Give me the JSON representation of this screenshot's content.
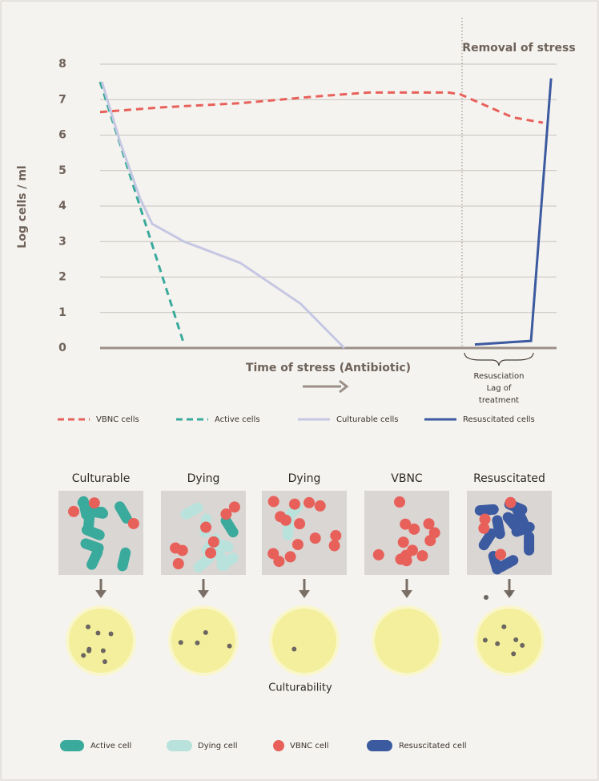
{
  "chart_data": {
    "type": "line",
    "ylabel": "Log cells / ml",
    "xlabel": "Time of stress (Antibiotic)",
    "annotations": [
      "Removal of stress",
      "Resusciation",
      "Lag of",
      "treatment"
    ],
    "xlim": [
      0,
      100
    ],
    "ylim": [
      0,
      8
    ],
    "yticks": [
      0,
      1,
      2,
      3,
      4,
      5,
      6,
      7,
      8
    ],
    "grid": true,
    "series": [
      {
        "name": "VBNC cells",
        "color": "#e8605a",
        "dashed": true,
        "x": [
          0,
          13.2,
          30.7,
          48.2,
          58.8,
          76.3,
          78.9,
          83.3,
          90.4,
          97
        ],
        "values": [
          6.65,
          6.78,
          6.9,
          7.1,
          7.2,
          7.2,
          7.15,
          6.9,
          6.5,
          6.35
        ]
      },
      {
        "name": "Active cells",
        "color": "#3aaa9c",
        "dashed": true,
        "x": [
          0,
          18.4
        ],
        "values": [
          7.5,
          0.1
        ]
      },
      {
        "name": "Culturable cells",
        "color": "#c5c7e3",
        "dashed": false,
        "x": [
          0.4,
          4.4,
          8.8,
          11.4,
          18.4,
          30.7,
          43.9,
          53.5
        ],
        "values": [
          7.5,
          5.8,
          4.2,
          3.5,
          3.0,
          2.4,
          1.25,
          0
        ]
      },
      {
        "name": "Resuscitated cells",
        "color": "#3c5aa0",
        "dashed": false,
        "x": [
          82.1,
          94.4,
          98.8
        ],
        "values": [
          0.1,
          0.2,
          7.6
        ]
      }
    ]
  },
  "panels": {
    "items": [
      {
        "title": "Culturable"
      },
      {
        "title": "Dying"
      },
      {
        "title": "Dying"
      },
      {
        "title": "VBNC"
      },
      {
        "title": "Resuscitated"
      }
    ],
    "caption": "Culturability"
  },
  "legend": {
    "items": [
      {
        "label": "Active cell"
      },
      {
        "label": "Dying cell"
      },
      {
        "label": "VBNC cell"
      },
      {
        "label": "Resuscitated cell"
      }
    ]
  }
}
